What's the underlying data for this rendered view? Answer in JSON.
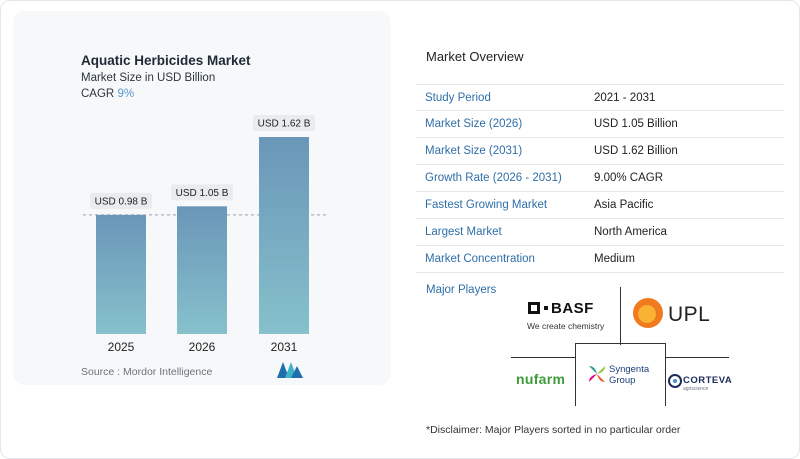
{
  "chart_data": {
    "type": "bar",
    "title": "Aquatic Herbicides Market",
    "subtitle": "Market Size in USD Billion",
    "cagr_label": "CAGR",
    "cagr_value": "9%",
    "categories": [
      "2025",
      "2026",
      "2031"
    ],
    "values": [
      0.98,
      1.05,
      1.62
    ],
    "data_labels": [
      "USD 0.98 B",
      "USD 1.05 B",
      "USD 1.62 B"
    ],
    "ylim": [
      0,
      1.62
    ],
    "reference_line": 0.98,
    "grid": false,
    "colors": {
      "bar_top": "#6a96b8",
      "bar_bottom": "#86c1cc",
      "reference_line": "#9aa4ad"
    }
  },
  "source": "Source :  Mordor Intelligence",
  "overview": {
    "title": "Market Overview",
    "rows": [
      {
        "label": "Study Period",
        "value": "2021 - 2031"
      },
      {
        "label": "Market Size (2026)",
        "value": "USD 1.05 Billion"
      },
      {
        "label": "Market Size (2031)",
        "value": "USD 1.62 Billion"
      },
      {
        "label": "Growth Rate (2026 - 2031)",
        "value": "9.00% CAGR"
      },
      {
        "label": "Fastest Growing Market",
        "value": "Asia Pacific"
      },
      {
        "label": "Largest Market",
        "value": "North America"
      },
      {
        "label": "Market Concentration",
        "value": "Medium"
      }
    ],
    "players_label": "Major Players"
  },
  "players": {
    "basf": "BASF",
    "basf_tagline": "We create chemistry",
    "upl": "UPL",
    "nufarm": "nufarm",
    "syngenta_line1": "Syngenta",
    "syngenta_line2": "Group",
    "corteva": "CORTEVA",
    "corteva_sub": "agriscience"
  },
  "disclaimer": "*Disclaimer: Major Players sorted in no particular order",
  "colors": {
    "accent": "#2f6fa8",
    "cagr": "#5c9ad0"
  }
}
